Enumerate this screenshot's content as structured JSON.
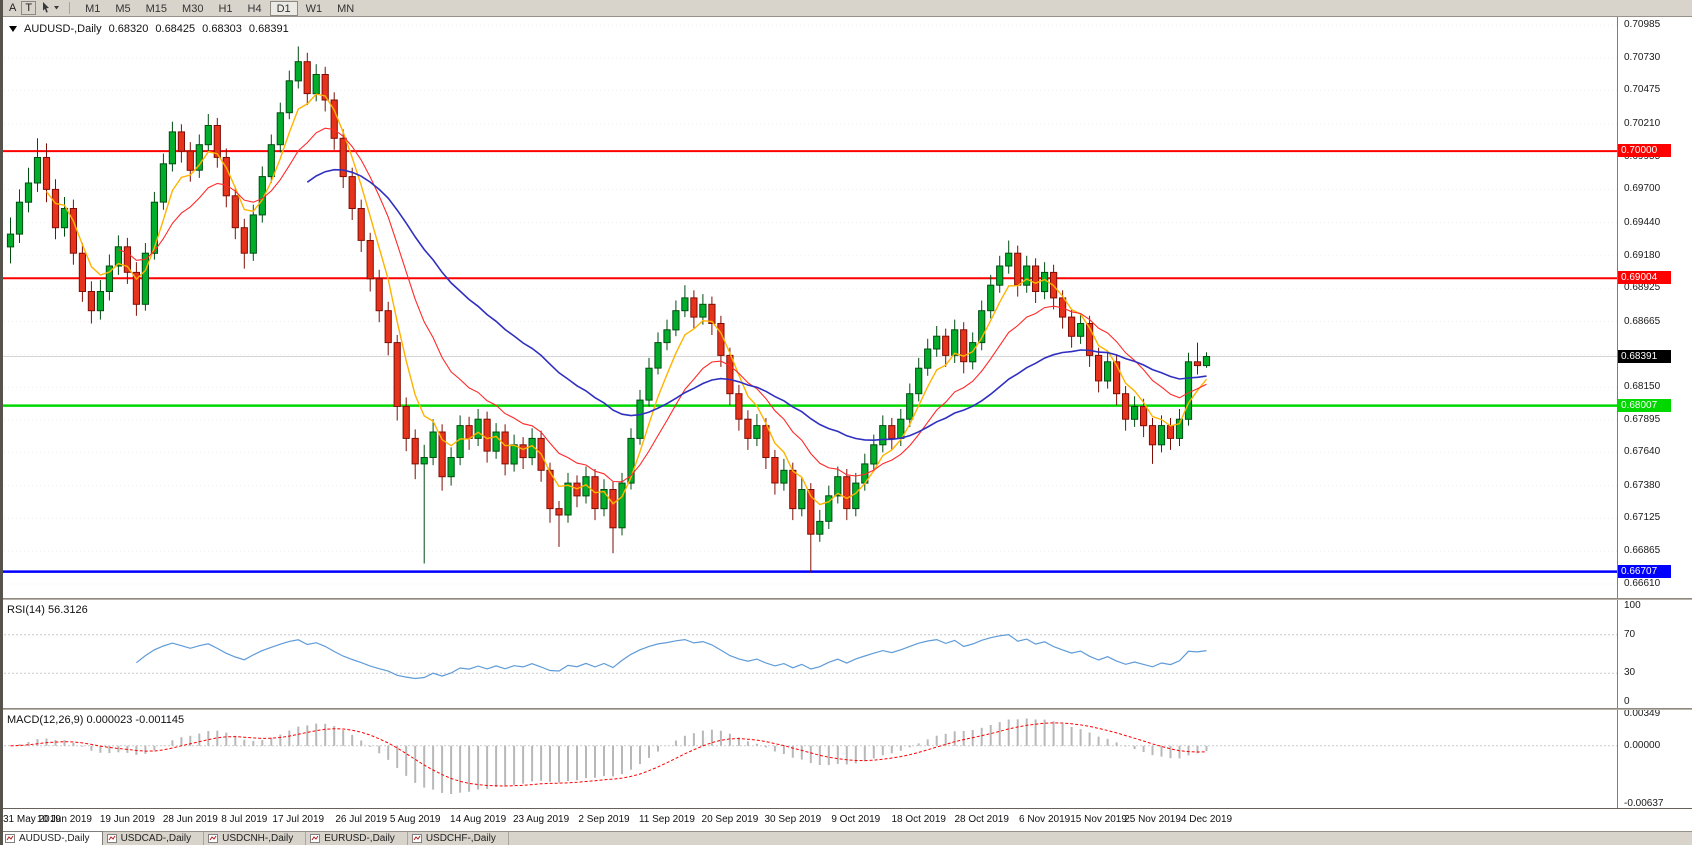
{
  "toolbar": {
    "tool_a": "A",
    "tool_t": "T",
    "timeframes": [
      "M1",
      "M5",
      "M15",
      "M30",
      "H1",
      "H4",
      "D1",
      "W1",
      "MN"
    ],
    "active_timeframe": "D1"
  },
  "chart": {
    "title": "AUDUSD-,Daily",
    "ohlc": {
      "open": "0.68320",
      "high": "0.68425",
      "low": "0.68303",
      "close": "0.68391"
    }
  },
  "colors": {
    "panel_bg": "#FFFFFF",
    "chrome_bg": "#D8D4CC",
    "up_fill": "#00AE2C",
    "up_stroke": "#004D12",
    "down_fill": "#E8331C",
    "down_stroke": "#7E0E05",
    "grid": "#F0F0F0",
    "current_price_line": "#D6D6D6"
  },
  "chart_data": {
    "type": "candlestick",
    "symbol": "AUDUSD-",
    "timeframe": "Daily",
    "price_range": [
      0.665,
      0.7105
    ],
    "price_axis_labels": [
      "0.70985",
      "0.70730",
      "0.70475",
      "0.70210",
      "0.69955",
      "0.69700",
      "0.69440",
      "0.69180",
      "0.68925",
      "0.68665",
      "0.68405",
      "0.68150",
      "0.67895",
      "0.67640",
      "0.67380",
      "0.67125",
      "0.66865",
      "0.66610"
    ],
    "hlines": [
      {
        "price": 0.7,
        "label": "0.70000",
        "color": "#FF0000",
        "width": 2
      },
      {
        "price": 0.69004,
        "label": "0.69004",
        "color": "#FF0000",
        "width": 2
      },
      {
        "price": 0.68007,
        "label": "0.68007",
        "color": "#00D800",
        "width": 2.5
      },
      {
        "price": 0.66707,
        "label": "0.66707",
        "color": "#0000FF",
        "width": 2.5
      }
    ],
    "current_price": {
      "value": 0.68391,
      "label": "0.68391",
      "box_color": "#000000"
    },
    "moving_averages": [
      {
        "name": "fast-ma",
        "period": 5,
        "color": "#FFB300",
        "width": 1.4
      },
      {
        "name": "mid-ma",
        "period": 13,
        "color": "#FF2A2A",
        "width": 1.1
      },
      {
        "name": "slow-ma",
        "period": 34,
        "color": "#3030C0",
        "width": 1.6
      }
    ],
    "indicators": {
      "rsi": {
        "label": "RSI(14) 56.3126",
        "period": 14,
        "color": "#5F9BD8",
        "levels": [
          "100",
          "70",
          "30",
          "0"
        ]
      },
      "macd": {
        "label": "MACD(12,26,9) 0.000023 -0.001145",
        "fast": 12,
        "slow": 26,
        "signal": 9,
        "axis_labels": [
          "0.00349",
          "0.00000",
          "-0.00637"
        ],
        "histogram_color": "#B8B8B8",
        "signal_color": "#FF0000"
      }
    },
    "x_axis_labels": [
      {
        "label": "31 May 2019",
        "index": 0
      },
      {
        "label": "10 Jun 2019",
        "index": 6
      },
      {
        "label": "19 Jun 2019",
        "index": 13
      },
      {
        "label": "28 Jun 2019",
        "index": 20
      },
      {
        "label": "8 Jul 2019",
        "index": 26
      },
      {
        "label": "17 Jul 2019",
        "index": 32
      },
      {
        "label": "26 Jul 2019",
        "index": 39
      },
      {
        "label": "5 Aug 2019",
        "index": 45
      },
      {
        "label": "14 Aug 2019",
        "index": 52
      },
      {
        "label": "23 Aug 2019",
        "index": 59
      },
      {
        "label": "2 Sep 2019",
        "index": 66
      },
      {
        "label": "11 Sep 2019",
        "index": 73
      },
      {
        "label": "20 Sep 2019",
        "index": 80
      },
      {
        "label": "30 Sep 2019",
        "index": 87
      },
      {
        "label": "9 Oct 2019",
        "index": 94
      },
      {
        "label": "18 Oct 2019",
        "index": 101
      },
      {
        "label": "28 Oct 2019",
        "index": 108
      },
      {
        "label": "6 Nov 2019",
        "index": 115
      },
      {
        "label": "15 Nov 2019",
        "index": 121
      },
      {
        "label": "25 Nov 2019",
        "index": 127
      },
      {
        "label": "4 Dec 2019",
        "index": 133
      }
    ],
    "candles": [
      [
        0.6925,
        0.6948,
        0.6912,
        0.6935
      ],
      [
        0.6935,
        0.697,
        0.6928,
        0.696
      ],
      [
        0.696,
        0.6987,
        0.6952,
        0.6975
      ],
      [
        0.6975,
        0.701,
        0.6968,
        0.6995
      ],
      [
        0.6995,
        0.7006,
        0.696,
        0.697
      ],
      [
        0.697,
        0.6978,
        0.6931,
        0.694
      ],
      [
        0.694,
        0.6964,
        0.6933,
        0.6955
      ],
      [
        0.6955,
        0.6962,
        0.6911,
        0.692
      ],
      [
        0.692,
        0.6928,
        0.6882,
        0.689
      ],
      [
        0.689,
        0.6898,
        0.6865,
        0.6875
      ],
      [
        0.6875,
        0.6899,
        0.6868,
        0.689
      ],
      [
        0.689,
        0.6919,
        0.6883,
        0.691
      ],
      [
        0.691,
        0.6934,
        0.6903,
        0.6925
      ],
      [
        0.6925,
        0.6932,
        0.6896,
        0.6905
      ],
      [
        0.6905,
        0.6913,
        0.6871,
        0.688
      ],
      [
        0.688,
        0.6928,
        0.6875,
        0.692
      ],
      [
        0.692,
        0.6968,
        0.6915,
        0.696
      ],
      [
        0.696,
        0.6998,
        0.6954,
        0.699
      ],
      [
        0.699,
        0.7023,
        0.6984,
        0.7015
      ],
      [
        0.7015,
        0.7021,
        0.6991,
        0.7
      ],
      [
        0.7,
        0.7007,
        0.6976,
        0.6985
      ],
      [
        0.6985,
        0.7013,
        0.6979,
        0.7005
      ],
      [
        0.7005,
        0.7029,
        0.6999,
        0.702
      ],
      [
        0.702,
        0.7026,
        0.6987,
        0.6995
      ],
      [
        0.6995,
        0.7002,
        0.6956,
        0.6965
      ],
      [
        0.6965,
        0.6972,
        0.6931,
        0.694
      ],
      [
        0.694,
        0.6947,
        0.6908,
        0.692
      ],
      [
        0.692,
        0.6958,
        0.6914,
        0.695
      ],
      [
        0.695,
        0.6988,
        0.6944,
        0.698
      ],
      [
        0.698,
        0.7013,
        0.6975,
        0.7005
      ],
      [
        0.7005,
        0.7038,
        0.6999,
        0.703
      ],
      [
        0.703,
        0.7063,
        0.7025,
        0.7055
      ],
      [
        0.7055,
        0.7082,
        0.7049,
        0.707
      ],
      [
        0.707,
        0.7077,
        0.7036,
        0.7045
      ],
      [
        0.7045,
        0.7068,
        0.7039,
        0.706
      ],
      [
        0.706,
        0.7066,
        0.7031,
        0.704
      ],
      [
        0.704,
        0.7046,
        0.7001,
        0.701
      ],
      [
        0.701,
        0.7017,
        0.6971,
        0.698
      ],
      [
        0.698,
        0.6987,
        0.6946,
        0.6955
      ],
      [
        0.6955,
        0.6962,
        0.6921,
        0.693
      ],
      [
        0.693,
        0.6936,
        0.689,
        0.69
      ],
      [
        0.69,
        0.6907,
        0.6866,
        0.6875
      ],
      [
        0.6875,
        0.6882,
        0.684,
        0.685
      ],
      [
        0.685,
        0.6856,
        0.6789,
        0.68
      ],
      [
        0.68,
        0.6807,
        0.6765,
        0.6775
      ],
      [
        0.6775,
        0.6782,
        0.6743,
        0.6755
      ],
      [
        0.6755,
        0.677,
        0.6677,
        0.676
      ],
      [
        0.676,
        0.679,
        0.6754,
        0.678
      ],
      [
        0.678,
        0.6786,
        0.6734,
        0.6745
      ],
      [
        0.6745,
        0.6768,
        0.6738,
        0.676
      ],
      [
        0.676,
        0.6793,
        0.6754,
        0.6785
      ],
      [
        0.6785,
        0.6792,
        0.6766,
        0.6775
      ],
      [
        0.6775,
        0.6798,
        0.6769,
        0.679
      ],
      [
        0.679,
        0.6796,
        0.6756,
        0.6765
      ],
      [
        0.6765,
        0.6787,
        0.6759,
        0.678
      ],
      [
        0.678,
        0.6786,
        0.6746,
        0.6755
      ],
      [
        0.6755,
        0.6778,
        0.6749,
        0.677
      ],
      [
        0.677,
        0.6776,
        0.6751,
        0.676
      ],
      [
        0.676,
        0.6783,
        0.6754,
        0.6775
      ],
      [
        0.6775,
        0.6781,
        0.6741,
        0.675
      ],
      [
        0.675,
        0.6756,
        0.6709,
        0.672
      ],
      [
        0.672,
        0.6726,
        0.669,
        0.6715
      ],
      [
        0.6715,
        0.6748,
        0.6709,
        0.674
      ],
      [
        0.674,
        0.6746,
        0.6721,
        0.673
      ],
      [
        0.673,
        0.6753,
        0.6724,
        0.6745
      ],
      [
        0.6745,
        0.6751,
        0.6711,
        0.672
      ],
      [
        0.672,
        0.6743,
        0.6714,
        0.6735
      ],
      [
        0.6735,
        0.6741,
        0.6685,
        0.6705
      ],
      [
        0.6705,
        0.6748,
        0.6699,
        0.674
      ],
      [
        0.674,
        0.6783,
        0.6735,
        0.6775
      ],
      [
        0.6775,
        0.6813,
        0.677,
        0.6805
      ],
      [
        0.6805,
        0.6838,
        0.68,
        0.683
      ],
      [
        0.683,
        0.6858,
        0.6825,
        0.685
      ],
      [
        0.685,
        0.6868,
        0.6844,
        0.686
      ],
      [
        0.686,
        0.6883,
        0.6855,
        0.6875
      ],
      [
        0.6875,
        0.6895,
        0.687,
        0.6885
      ],
      [
        0.6885,
        0.6891,
        0.6861,
        0.687
      ],
      [
        0.687,
        0.6888,
        0.6864,
        0.688
      ],
      [
        0.688,
        0.6886,
        0.6856,
        0.6865
      ],
      [
        0.6865,
        0.6871,
        0.6831,
        0.684
      ],
      [
        0.684,
        0.6846,
        0.6801,
        0.681
      ],
      [
        0.681,
        0.6817,
        0.6781,
        0.679
      ],
      [
        0.679,
        0.6797,
        0.6766,
        0.6775
      ],
      [
        0.6775,
        0.6794,
        0.6769,
        0.6785
      ],
      [
        0.6785,
        0.6791,
        0.6751,
        0.676
      ],
      [
        0.676,
        0.6766,
        0.6731,
        0.674
      ],
      [
        0.674,
        0.6759,
        0.6734,
        0.675
      ],
      [
        0.675,
        0.6756,
        0.6711,
        0.672
      ],
      [
        0.672,
        0.6744,
        0.6714,
        0.6735
      ],
      [
        0.6735,
        0.674,
        0.667,
        0.67
      ],
      [
        0.67,
        0.6719,
        0.6694,
        0.671
      ],
      [
        0.671,
        0.6738,
        0.6704,
        0.673
      ],
      [
        0.673,
        0.6753,
        0.6724,
        0.6745
      ],
      [
        0.6745,
        0.6751,
        0.6711,
        0.672
      ],
      [
        0.672,
        0.6748,
        0.6714,
        0.674
      ],
      [
        0.674,
        0.6763,
        0.6734,
        0.6755
      ],
      [
        0.6755,
        0.6778,
        0.6749,
        0.677
      ],
      [
        0.677,
        0.6793,
        0.6764,
        0.6785
      ],
      [
        0.6785,
        0.6791,
        0.6766,
        0.6775
      ],
      [
        0.6775,
        0.6798,
        0.6769,
        0.679
      ],
      [
        0.679,
        0.6818,
        0.6784,
        0.681
      ],
      [
        0.681,
        0.6838,
        0.6804,
        0.683
      ],
      [
        0.683,
        0.6853,
        0.6824,
        0.6845
      ],
      [
        0.6845,
        0.6863,
        0.6839,
        0.6855
      ],
      [
        0.6855,
        0.6861,
        0.6831,
        0.684
      ],
      [
        0.684,
        0.6868,
        0.6834,
        0.686
      ],
      [
        0.686,
        0.6866,
        0.6826,
        0.6835
      ],
      [
        0.6835,
        0.6858,
        0.6829,
        0.685
      ],
      [
        0.685,
        0.6883,
        0.6844,
        0.6875
      ],
      [
        0.6875,
        0.6903,
        0.6869,
        0.6895
      ],
      [
        0.6895,
        0.6918,
        0.6889,
        0.691
      ],
      [
        0.691,
        0.693,
        0.6904,
        0.692
      ],
      [
        0.692,
        0.6926,
        0.6886,
        0.6895
      ],
      [
        0.6895,
        0.6918,
        0.6889,
        0.691
      ],
      [
        0.691,
        0.6916,
        0.6881,
        0.689
      ],
      [
        0.689,
        0.6913,
        0.6884,
        0.6905
      ],
      [
        0.6905,
        0.6911,
        0.6876,
        0.6885
      ],
      [
        0.6885,
        0.6891,
        0.6861,
        0.687
      ],
      [
        0.687,
        0.6876,
        0.6846,
        0.6855
      ],
      [
        0.6855,
        0.6873,
        0.6849,
        0.6865
      ],
      [
        0.6865,
        0.6871,
        0.6831,
        0.684
      ],
      [
        0.684,
        0.6846,
        0.6811,
        0.682
      ],
      [
        0.682,
        0.6843,
        0.6814,
        0.6835
      ],
      [
        0.6835,
        0.6841,
        0.6801,
        0.681
      ],
      [
        0.681,
        0.6816,
        0.6781,
        0.679
      ],
      [
        0.679,
        0.6808,
        0.6784,
        0.68
      ],
      [
        0.68,
        0.6806,
        0.6776,
        0.6785
      ],
      [
        0.6785,
        0.6791,
        0.6755,
        0.677
      ],
      [
        0.677,
        0.6793,
        0.6764,
        0.6785
      ],
      [
        0.6785,
        0.6791,
        0.6766,
        0.6775
      ],
      [
        0.6775,
        0.6798,
        0.6769,
        0.679
      ],
      [
        0.679,
        0.6842,
        0.6785,
        0.6835
      ],
      [
        0.6835,
        0.685,
        0.6825,
        0.6832
      ],
      [
        0.6832,
        0.68425,
        0.68303,
        0.68391
      ]
    ]
  },
  "tabs": [
    {
      "label": "AUDUSD-,Daily",
      "active": true
    },
    {
      "label": "USDCAD-,Daily",
      "active": false
    },
    {
      "label": "USDCNH-,Daily",
      "active": false
    },
    {
      "label": "EURUSD-,Daily",
      "active": false
    },
    {
      "label": "USDCHF-,Daily",
      "active": false
    }
  ]
}
